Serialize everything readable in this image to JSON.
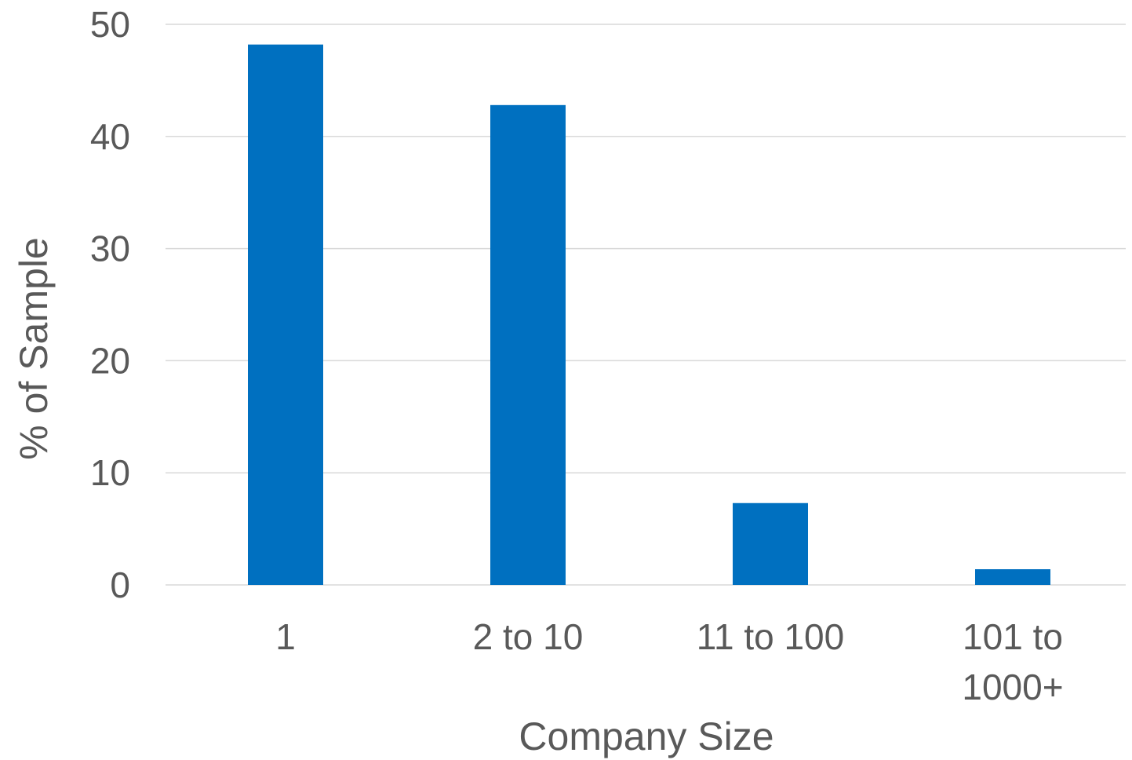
{
  "chart_data": {
    "type": "bar",
    "title": "",
    "xlabel": "Company Size",
    "ylabel": "% of Sample",
    "categories": [
      [
        "1"
      ],
      [
        "2 to 10"
      ],
      [
        "11 to 100"
      ],
      [
        "101 to",
        "1000+"
      ]
    ],
    "values": [
      48.2,
      42.8,
      7.3,
      1.4
    ],
    "ylim": [
      0,
      50
    ],
    "yticks": [
      0,
      10,
      20,
      30,
      40,
      50
    ],
    "grid": true,
    "legend": "none",
    "bar_color": "#0070c0",
    "grid_color": "#d9d9d9",
    "text_color": "#595959"
  }
}
